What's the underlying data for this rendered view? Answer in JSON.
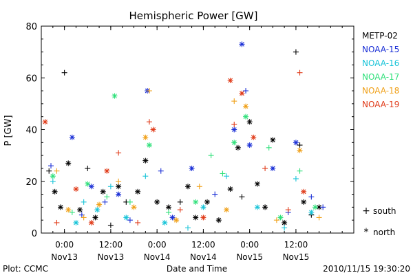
{
  "chart_data": {
    "type": "scatter",
    "title": "Hemispheric Power [GW]",
    "ylabel": "P [GW]",
    "xlabel": "Date and Time",
    "ylim": [
      0,
      80
    ],
    "yticks": [
      0,
      20,
      40,
      60,
      80
    ],
    "xlim": [
      "2010-11-12 18:00",
      "2010-11-16 03:00"
    ],
    "xticks": [
      {
        "time": "2010-11-13 00:00",
        "label_time": "0:00",
        "label_date": "Nov13"
      },
      {
        "time": "2010-11-13 12:00",
        "label_time": "12:00",
        "label_date": "Nov13"
      },
      {
        "time": "2010-11-14 00:00",
        "label_time": "0:00",
        "label_date": "Nov14"
      },
      {
        "time": "2010-11-14 12:00",
        "label_time": "12:00",
        "label_date": "Nov14"
      },
      {
        "time": "2010-11-15 00:00",
        "label_time": "0:00",
        "label_date": "Nov15"
      },
      {
        "time": "2010-11-15 12:00",
        "label_time": "12:00",
        "label_date": "Nov15"
      }
    ],
    "legend_placement": "right",
    "marker_legend": [
      {
        "symbol": "+",
        "label": "south"
      },
      {
        "symbol": "*",
        "label": "north"
      }
    ],
    "series": [
      {
        "name": "METP-02",
        "color": "#000000",
        "points": [
          {
            "x": "2010-11-12 20:00",
            "y": 24,
            "h": "south"
          },
          {
            "x": "2010-11-12 21:30",
            "y": 16,
            "h": "north"
          },
          {
            "x": "2010-11-12 23:00",
            "y": 10,
            "h": "north"
          },
          {
            "x": "2010-11-13 00:00",
            "y": 62,
            "h": "south"
          },
          {
            "x": "2010-11-13 01:00",
            "y": 27,
            "h": "north"
          },
          {
            "x": "2010-11-13 04:00",
            "y": 9,
            "h": "north"
          },
          {
            "x": "2010-11-13 06:00",
            "y": 25,
            "h": "south"
          },
          {
            "x": "2010-11-13 08:00",
            "y": 6,
            "h": "north"
          },
          {
            "x": "2010-11-13 10:00",
            "y": 16,
            "h": "north"
          },
          {
            "x": "2010-11-13 12:00",
            "y": 3,
            "h": "south"
          },
          {
            "x": "2010-11-13 14:00",
            "y": 18,
            "h": "north"
          },
          {
            "x": "2010-11-13 16:00",
            "y": 12,
            "h": "south"
          },
          {
            "x": "2010-11-13 19:00",
            "y": 16,
            "h": "north"
          },
          {
            "x": "2010-11-13 21:00",
            "y": 28,
            "h": "north"
          },
          {
            "x": "2010-11-14 00:00",
            "y": 12,
            "h": "north"
          },
          {
            "x": "2010-11-14 03:00",
            "y": 10,
            "h": "north"
          },
          {
            "x": "2010-11-14 06:00",
            "y": 12,
            "h": "south"
          },
          {
            "x": "2010-11-14 08:00",
            "y": 18,
            "h": "north"
          },
          {
            "x": "2010-11-14 10:00",
            "y": 6,
            "h": "north"
          },
          {
            "x": "2010-11-14 13:00",
            "y": 12,
            "h": "north"
          },
          {
            "x": "2010-11-14 16:00",
            "y": 5,
            "h": "north"
          },
          {
            "x": "2010-11-14 19:00",
            "y": 17,
            "h": "north"
          },
          {
            "x": "2010-11-14 21:00",
            "y": 33,
            "h": "north"
          },
          {
            "x": "2010-11-14 22:00",
            "y": 14,
            "h": "south"
          },
          {
            "x": "2010-11-15 00:00",
            "y": 43,
            "h": "north"
          },
          {
            "x": "2010-11-15 02:00",
            "y": 19,
            "h": "north"
          },
          {
            "x": "2010-11-15 04:00",
            "y": 10,
            "h": "north"
          },
          {
            "x": "2010-11-15 06:00",
            "y": 36,
            "h": "north"
          },
          {
            "x": "2010-11-15 09:00",
            "y": 4,
            "h": "north"
          },
          {
            "x": "2010-11-15 12:00",
            "y": 70,
            "h": "south"
          },
          {
            "x": "2010-11-15 13:00",
            "y": 34,
            "h": "south"
          },
          {
            "x": "2010-11-15 14:00",
            "y": 12,
            "h": "north"
          },
          {
            "x": "2010-11-15 16:00",
            "y": 7,
            "h": "south"
          },
          {
            "x": "2010-11-15 18:00",
            "y": 10,
            "h": "north"
          }
        ]
      },
      {
        "name": "NOAA-15",
        "color": "#1a2fd6",
        "points": [
          {
            "x": "2010-11-12 20:30",
            "y": 26,
            "h": "south"
          },
          {
            "x": "2010-11-13 02:00",
            "y": 37,
            "h": "north"
          },
          {
            "x": "2010-11-13 04:30",
            "y": 7,
            "h": "south"
          },
          {
            "x": "2010-11-13 07:00",
            "y": 18,
            "h": "north"
          },
          {
            "x": "2010-11-13 10:30",
            "y": 12,
            "h": "south"
          },
          {
            "x": "2010-11-13 14:00",
            "y": 15,
            "h": "north"
          },
          {
            "x": "2010-11-13 17:00",
            "y": 5,
            "h": "south"
          },
          {
            "x": "2010-11-13 21:30",
            "y": 55,
            "h": "north"
          },
          {
            "x": "2010-11-14 01:00",
            "y": 24,
            "h": "south"
          },
          {
            "x": "2010-11-14 04:00",
            "y": 6,
            "h": "north"
          },
          {
            "x": "2010-11-14 09:00",
            "y": 25,
            "h": "north"
          },
          {
            "x": "2010-11-14 15:00",
            "y": 15,
            "h": "south"
          },
          {
            "x": "2010-11-14 20:00",
            "y": 40,
            "h": "north"
          },
          {
            "x": "2010-11-14 22:00",
            "y": 73,
            "h": "north"
          },
          {
            "x": "2010-11-14 23:00",
            "y": 55,
            "h": "south"
          },
          {
            "x": "2010-11-15 00:00",
            "y": 34,
            "h": "north"
          },
          {
            "x": "2010-11-15 06:00",
            "y": 25,
            "h": "north"
          },
          {
            "x": "2010-11-15 10:00",
            "y": 8,
            "h": "south"
          },
          {
            "x": "2010-11-15 12:00",
            "y": 35,
            "h": "north"
          },
          {
            "x": "2010-11-15 16:00",
            "y": 14,
            "h": "south"
          },
          {
            "x": "2010-11-15 19:00",
            "y": 10,
            "h": "south"
          }
        ]
      },
      {
        "name": "NOAA-16",
        "color": "#18c4d8",
        "points": [
          {
            "x": "2010-11-12 21:00",
            "y": 20,
            "h": "south"
          },
          {
            "x": "2010-11-13 03:00",
            "y": 4,
            "h": "north"
          },
          {
            "x": "2010-11-13 05:00",
            "y": 12,
            "h": "south"
          },
          {
            "x": "2010-11-13 08:30",
            "y": 9,
            "h": "north"
          },
          {
            "x": "2010-11-13 12:00",
            "y": 18,
            "h": "south"
          },
          {
            "x": "2010-11-13 16:00",
            "y": 6,
            "h": "north"
          },
          {
            "x": "2010-11-13 21:00",
            "y": 22,
            "h": "south"
          },
          {
            "x": "2010-11-14 02:00",
            "y": 4,
            "h": "north"
          },
          {
            "x": "2010-11-14 08:00",
            "y": 2,
            "h": "south"
          },
          {
            "x": "2010-11-14 12:00",
            "y": 10,
            "h": "north"
          },
          {
            "x": "2010-11-14 18:00",
            "y": 22,
            "h": "south"
          },
          {
            "x": "2010-11-15 02:00",
            "y": 10,
            "h": "north"
          },
          {
            "x": "2010-11-15 09:00",
            "y": 2,
            "h": "south"
          },
          {
            "x": "2010-11-15 12:00",
            "y": 21,
            "h": "south"
          },
          {
            "x": "2010-11-15 16:00",
            "y": 8,
            "h": "north"
          }
        ]
      },
      {
        "name": "NOAA-17",
        "color": "#2fe07a",
        "points": [
          {
            "x": "2010-11-12 21:00",
            "y": 22,
            "h": "north"
          },
          {
            "x": "2010-11-13 02:00",
            "y": 8,
            "h": "south"
          },
          {
            "x": "2010-11-13 06:00",
            "y": 19,
            "h": "north"
          },
          {
            "x": "2010-11-13 11:00",
            "y": 14,
            "h": "south"
          },
          {
            "x": "2010-11-13 13:00",
            "y": 53,
            "h": "north"
          },
          {
            "x": "2010-11-13 17:00",
            "y": 12,
            "h": "south"
          },
          {
            "x": "2010-11-13 22:00",
            "y": 34,
            "h": "north"
          },
          {
            "x": "2010-11-14 03:00",
            "y": 8,
            "h": "south"
          },
          {
            "x": "2010-11-14 10:00",
            "y": 12,
            "h": "north"
          },
          {
            "x": "2010-11-14 14:00",
            "y": 30,
            "h": "south"
          },
          {
            "x": "2010-11-14 17:00",
            "y": 23,
            "h": "south"
          },
          {
            "x": "2010-11-14 20:00",
            "y": 35,
            "h": "north"
          },
          {
            "x": "2010-11-14 23:00",
            "y": 45,
            "h": "north"
          },
          {
            "x": "2010-11-15 05:00",
            "y": 33,
            "h": "south"
          },
          {
            "x": "2010-11-15 08:00",
            "y": 6,
            "h": "north"
          },
          {
            "x": "2010-11-15 13:00",
            "y": 24,
            "h": "south"
          },
          {
            "x": "2010-11-15 17:00",
            "y": 10,
            "h": "north"
          }
        ]
      },
      {
        "name": "NOAA-18",
        "color": "#f0a018",
        "points": [
          {
            "x": "2010-11-12 22:00",
            "y": 24,
            "h": "south"
          },
          {
            "x": "2010-11-13 01:00",
            "y": 9,
            "h": "north"
          },
          {
            "x": "2010-11-13 05:00",
            "y": 6,
            "h": "south"
          },
          {
            "x": "2010-11-13 09:00",
            "y": 11,
            "h": "north"
          },
          {
            "x": "2010-11-13 14:00",
            "y": 20,
            "h": "south"
          },
          {
            "x": "2010-11-13 18:00",
            "y": 10,
            "h": "north"
          },
          {
            "x": "2010-11-13 21:00",
            "y": 37,
            "h": "north"
          },
          {
            "x": "2010-11-13 22:00",
            "y": 55,
            "h": "south"
          },
          {
            "x": "2010-11-14 05:00",
            "y": 5,
            "h": "north"
          },
          {
            "x": "2010-11-14 11:00",
            "y": 18,
            "h": "south"
          },
          {
            "x": "2010-11-14 18:00",
            "y": 9,
            "h": "north"
          },
          {
            "x": "2010-11-14 20:00",
            "y": 51,
            "h": "south"
          },
          {
            "x": "2010-11-14 23:00",
            "y": 49,
            "h": "north"
          },
          {
            "x": "2010-11-15 07:00",
            "y": 5,
            "h": "south"
          },
          {
            "x": "2010-11-15 13:00",
            "y": 32,
            "h": "north"
          },
          {
            "x": "2010-11-15 18:00",
            "y": 6,
            "h": "south"
          }
        ]
      },
      {
        "name": "NOAA-19",
        "color": "#e03a18",
        "points": [
          {
            "x": "2010-11-12 19:00",
            "y": 43,
            "h": "north"
          },
          {
            "x": "2010-11-12 22:00",
            "y": 4,
            "h": "south"
          },
          {
            "x": "2010-11-13 03:00",
            "y": 17,
            "h": "north"
          },
          {
            "x": "2010-11-13 07:00",
            "y": 4,
            "h": "north"
          },
          {
            "x": "2010-11-13 11:00",
            "y": 24,
            "h": "north"
          },
          {
            "x": "2010-11-13 14:00",
            "y": 31,
            "h": "south"
          },
          {
            "x": "2010-11-13 19:00",
            "y": 4,
            "h": "south"
          },
          {
            "x": "2010-11-13 22:00",
            "y": 43,
            "h": "south"
          },
          {
            "x": "2010-11-13 23:00",
            "y": 40,
            "h": "north"
          },
          {
            "x": "2010-11-14 06:00",
            "y": 9,
            "h": "south"
          },
          {
            "x": "2010-11-14 12:00",
            "y": 6,
            "h": "north"
          },
          {
            "x": "2010-11-14 19:00",
            "y": 59,
            "h": "north"
          },
          {
            "x": "2010-11-14 20:00",
            "y": 42,
            "h": "south"
          },
          {
            "x": "2010-11-14 22:00",
            "y": 54,
            "h": "north"
          },
          {
            "x": "2010-11-15 01:00",
            "y": 37,
            "h": "north"
          },
          {
            "x": "2010-11-15 04:00",
            "y": 25,
            "h": "south"
          },
          {
            "x": "2010-11-15 10:00",
            "y": 9,
            "h": "south"
          },
          {
            "x": "2010-11-15 13:00",
            "y": 62,
            "h": "south"
          },
          {
            "x": "2010-11-15 14:00",
            "y": 16,
            "h": "north"
          }
        ]
      }
    ]
  },
  "footer": {
    "left": "Plot: CCMC",
    "right": "2010/11/15 19:30:20"
  }
}
